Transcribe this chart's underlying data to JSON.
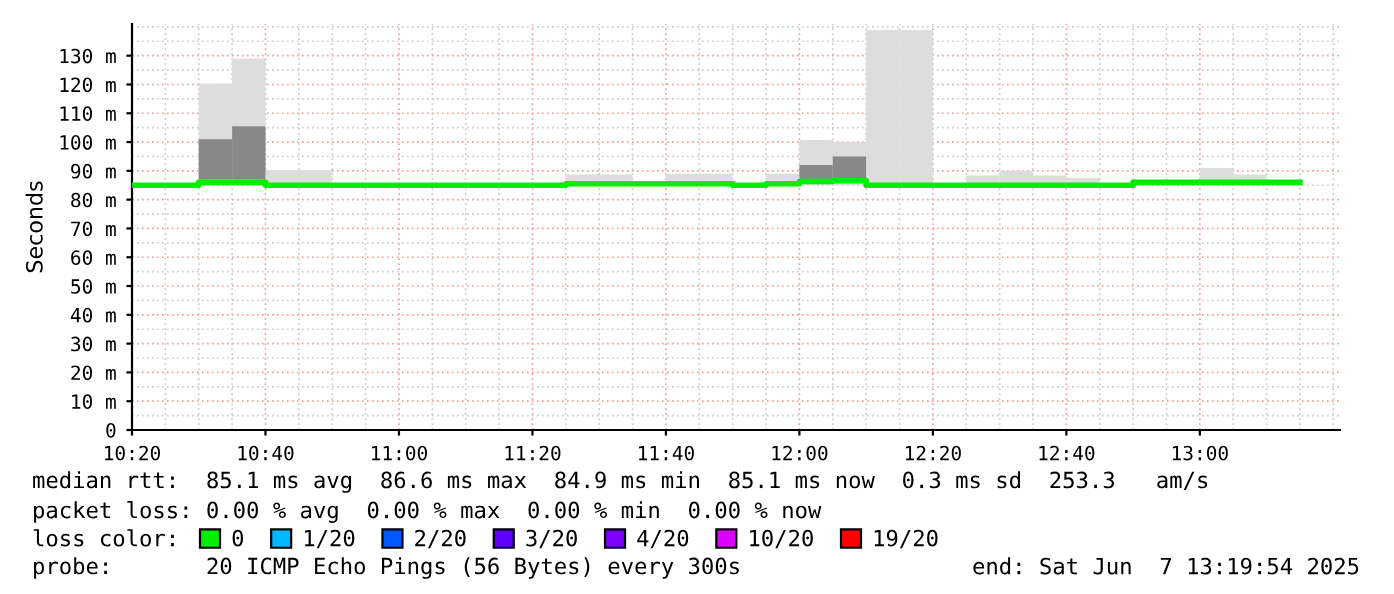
{
  "chart_data": {
    "type": "bar",
    "ylabel": "Seconds",
    "legend_title": "loss color:",
    "legend": "bottom",
    "grid": true,
    "series": [
      {
        "color": "#dddddd",
        "x": [
          "2025-06-07T10:30",
          "2025-06-07T10:35",
          "2025-06-07T10:40",
          "2025-06-07T10:45",
          "2025-06-07T11:25",
          "2025-06-07T11:30",
          "2025-06-07T11:40",
          "2025-06-07T11:45",
          "2025-06-07T11:55",
          "2025-06-07T12:00",
          "2025-06-07T12:05",
          "2025-06-07T12:10",
          "2025-06-07T12:15",
          "2025-06-07T12:25",
          "2025-06-07T12:30",
          "2025-06-07T12:35",
          "2025-06-07T12:40",
          "2025-06-07T13:00",
          "2025-06-07T13:05"
        ],
        "base": [
          85,
          85,
          85,
          85,
          85,
          85,
          85,
          85,
          85,
          85,
          85,
          85,
          85,
          85,
          85,
          85,
          85,
          85,
          85
        ],
        "values": [
          35.3,
          44,
          5.3,
          5.3,
          3.7,
          3.7,
          4,
          4,
          4,
          15.7,
          15,
          53.9,
          53.9,
          3.4,
          5,
          3.4,
          2.5,
          6,
          3.7
        ]
      },
      {
        "color": "#888888",
        "x": [
          "2025-06-07T10:30",
          "2025-06-07T10:35",
          "2025-06-07T12:00",
          "2025-06-07T12:05"
        ],
        "base": [
          87,
          87,
          86,
          86
        ],
        "values": [
          14,
          18.5,
          6,
          9
        ]
      },
      {
        "type": "step",
        "name": "0",
        "color": "#00ee00",
        "x": [
          "2025-06-07T10:20",
          "2025-06-07T10:25",
          "2025-06-07T10:30",
          "2025-06-07T10:35",
          "2025-06-07T10:40",
          "2025-06-07T10:45",
          "2025-06-07T10:50",
          "2025-06-07T10:55",
          "2025-06-07T11:00",
          "2025-06-07T11:05",
          "2025-06-07T11:10",
          "2025-06-07T11:15",
          "2025-06-07T11:20",
          "2025-06-07T11:25",
          "2025-06-07T11:30",
          "2025-06-07T11:35",
          "2025-06-07T11:40",
          "2025-06-07T11:45",
          "2025-06-07T11:50",
          "2025-06-07T11:55",
          "2025-06-07T12:00",
          "2025-06-07T12:05",
          "2025-06-07T12:10",
          "2025-06-07T12:15",
          "2025-06-07T12:20",
          "2025-06-07T12:25",
          "2025-06-07T12:30",
          "2025-06-07T12:35",
          "2025-06-07T12:40",
          "2025-06-07T12:45",
          "2025-06-07T12:50",
          "2025-06-07T12:55",
          "2025-06-07T13:00",
          "2025-06-07T13:05",
          "2025-06-07T13:10",
          "2025-06-07T13:15"
        ],
        "values": [
          85,
          85,
          86,
          86,
          85,
          85,
          85,
          85,
          85,
          85,
          85,
          85,
          85,
          85.5,
          85.5,
          85.5,
          85.5,
          85.5,
          85,
          85.5,
          86.3,
          86.6,
          85,
          85,
          85,
          85,
          85,
          85,
          85,
          85,
          86,
          86,
          86,
          86,
          86,
          86
        ]
      },
      {
        "type": "step",
        "name": "1/20",
        "color": "#00b8ff"
      },
      {
        "type": "step",
        "name": "2/20",
        "color": "#0059ff"
      },
      {
        "type": "step",
        "name": "3/20",
        "color": "#5e00ff"
      },
      {
        "type": "step",
        "name": "4/20",
        "color": "#7e00ff"
      },
      {
        "type": "step",
        "name": "10/20",
        "color": "#dd00ff"
      },
      {
        "type": "step",
        "name": "19/20",
        "color": "#ff0000"
      }
    ],
    "xlim": [
      "2025-06-07T10:20",
      "2025-06-07T13:21"
    ],
    "xticks": [
      {
        "value": "2025-06-07T10:20",
        "label": "10:20"
      },
      {
        "value": "2025-06-07T10:40",
        "label": "10:40"
      },
      {
        "value": "2025-06-07T11:00",
        "label": "11:00"
      },
      {
        "value": "2025-06-07T11:20",
        "label": "11:20"
      },
      {
        "value": "2025-06-07T11:40",
        "label": "11:40"
      },
      {
        "value": "2025-06-07T12:00",
        "label": "12:00"
      },
      {
        "value": "2025-06-07T12:20",
        "label": "12:20"
      },
      {
        "value": "2025-06-07T12:40",
        "label": "12:40"
      },
      {
        "value": "2025-06-07T13:00",
        "label": "13:00"
      }
    ],
    "ylim": [
      0,
      141
    ],
    "yticks": [
      0,
      {
        "value": 10,
        "label": "10 m"
      },
      {
        "value": 20,
        "label": "20 m"
      },
      {
        "value": 30,
        "label": "30 m"
      },
      {
        "value": 40,
        "label": "40 m"
      },
      {
        "value": 50,
        "label": "50 m"
      },
      {
        "value": 60,
        "label": "60 m"
      },
      {
        "value": 70,
        "label": "70 m"
      },
      {
        "value": 80,
        "label": "80 m"
      },
      {
        "value": 90,
        "label": "90 m"
      },
      {
        "value": 100,
        "label": "100 m"
      },
      {
        "value": 110,
        "label": "110 m"
      },
      {
        "value": 120,
        "label": "120 m"
      },
      {
        "value": 130,
        "label": "130 m"
      }
    ],
    "annotations": [
      "median rtt:  85.1 ms avg  86.6 ms max  84.9 ms min  85.1 ms now  0.3 ms sd  253.3   am/s",
      "packet loss: 0.00 % avg  0.00 % max  0.00 % min  0.00 % now",
      "probe:       20 ICMP Echo Pings (56 Bytes) every 300s",
      "end: Sat Jun  7 13:19:54 2025"
    ]
  }
}
